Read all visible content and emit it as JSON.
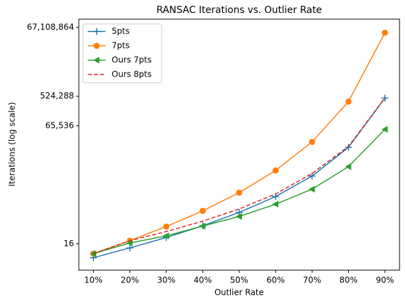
{
  "chart_data": {
    "type": "line",
    "title": "RANSAC Iterations vs. Outlier Rate",
    "xlabel": "Outlier Rate",
    "ylabel": "Iterations (log scale)",
    "x": [
      10,
      20,
      30,
      40,
      50,
      60,
      70,
      80,
      90
    ],
    "xlim": [
      6,
      94
    ],
    "xticks": [
      {
        "value": 10,
        "label": "10%"
      },
      {
        "value": 20,
        "label": "20%"
      },
      {
        "value": 30,
        "label": "30%"
      },
      {
        "value": 40,
        "label": "40%"
      },
      {
        "value": 50,
        "label": "50%"
      },
      {
        "value": 60,
        "label": "60%"
      },
      {
        "value": 70,
        "label": "70%"
      },
      {
        "value": 80,
        "label": "80%"
      },
      {
        "value": 90,
        "label": "90%"
      }
    ],
    "yscale": "log",
    "ylim": [
      2.5,
      120000000
    ],
    "yticks": [
      16,
      {
        "value": 65536,
        "label": "65,536"
      },
      {
        "value": 524288,
        "label": "524,288"
      },
      {
        "value": 67108864,
        "label": "67,108,864"
      }
    ],
    "grid": false,
    "legend": "upper left",
    "series": [
      {
        "name": "5pts",
        "color": "#1f77b4",
        "marker": "+",
        "linestyle": "solid",
        "values": [
          6,
          12,
          25,
          57,
          146,
          448,
          1893,
          14389,
          460515
        ]
      },
      {
        "name": "7pts",
        "color": "#ff7f0e",
        "marker": "o",
        "linestyle": "solid",
        "values": [
          8,
          20,
          54,
          163,
          588,
          2809,
          21055,
          359776,
          46051700
        ]
      },
      {
        "name": "Ours 7pts",
        "color": "#2ca02c",
        "marker": "<",
        "linestyle": "solid",
        "values": [
          8,
          17,
          28,
          56,
          110,
          261,
          753,
          3690,
          51000
        ]
      },
      {
        "name": "Ours 8pts",
        "color": "#d62728",
        "marker": "none",
        "linestyle": "dashed",
        "values": [
          8,
          20,
          38,
          79,
          186,
          537,
          2270,
          15300,
          470000
        ]
      }
    ]
  }
}
